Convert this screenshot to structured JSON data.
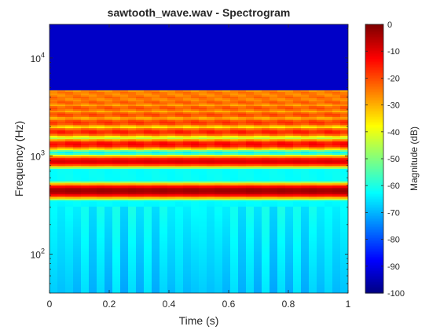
{
  "chart_data": {
    "type": "heatmap",
    "title": "sawtooth_wave.wav - Spectrogram",
    "xlabel": "Time (s)",
    "ylabel": "Frequency (Hz)",
    "xlim": [
      0,
      1
    ],
    "ylim": [
      40,
      22050
    ],
    "yscale": "log",
    "xticks": [
      0,
      0.2,
      0.4,
      0.6,
      0.8,
      1
    ],
    "xticklabels": [
      "0",
      "0.2",
      "0.4",
      "0.6",
      "0.8",
      "1"
    ],
    "yticks": [
      100,
      1000,
      10000
    ],
    "yticklabels": [
      {
        "base": "10",
        "exp": "2"
      },
      {
        "base": "10",
        "exp": "3"
      },
      {
        "base": "10",
        "exp": "4"
      }
    ],
    "colormap": "jet",
    "colorbar": {
      "label": "Magnitude (dB)",
      "clim": [
        -100,
        0
      ],
      "ticks": [
        0,
        -10,
        -20,
        -30,
        -40,
        -50,
        -60,
        -70,
        -80,
        -90,
        -100
      ],
      "ticklabels": [
        "0",
        "-10",
        "-20",
        "-30",
        "-40",
        "-50",
        "-60",
        "-70",
        "-80",
        "-90",
        "-100"
      ]
    },
    "fundamental_hz": 440,
    "harmonics_hz": [
      440,
      880,
      1320,
      1760,
      2200,
      2640,
      3080,
      3520,
      3960,
      4400
    ],
    "harmonic_magnitudes_db": [
      -3,
      -9,
      -13,
      -16,
      -18,
      -20,
      -21,
      -22,
      -23,
      -24
    ],
    "upper_cutoff_hz": 4600,
    "background_db_above_cutoff": -93,
    "low_freq_floor_db": -62
  }
}
